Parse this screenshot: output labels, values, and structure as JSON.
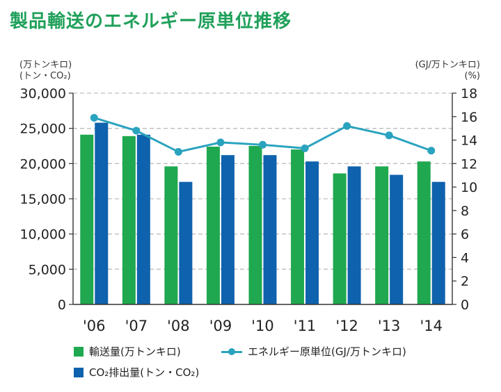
{
  "title": "製品輸送のエネルギー原単位推移",
  "chart_data": {
    "type": "bar",
    "categories": [
      "'06",
      "'07",
      "'08",
      "'09",
      "'10",
      "'11",
      "'12",
      "'13",
      "'14"
    ],
    "series": [
      {
        "name": "輸送量(万トンキロ)",
        "axis": "left",
        "color": "#1fa84f",
        "values": [
          24100,
          23900,
          19600,
          22400,
          22500,
          22000,
          18600,
          19600,
          20300
        ]
      },
      {
        "name": "CO₂排出量(トン・CO₂)",
        "axis": "left",
        "color": "#0f62ad",
        "values": [
          25800,
          24100,
          17400,
          21200,
          21200,
          20300,
          19600,
          18400,
          17400
        ]
      },
      {
        "name": "エネルギー原単位(GJ/万トンキロ)",
        "axis": "right",
        "type": "line",
        "color": "#2aa3bf",
        "values": [
          15.9,
          14.8,
          13.0,
          13.8,
          13.6,
          13.3,
          15.2,
          14.4,
          13.1
        ]
      }
    ],
    "y_left": {
      "unit_line1": "(万トンキロ)",
      "unit_line2": "(トン・CO₂)",
      "ylim": [
        0,
        30000
      ],
      "ticks": [
        "0",
        "5,000",
        "10,000",
        "15,000",
        "20,000",
        "25,000",
        "30,000"
      ]
    },
    "y_right": {
      "unit_line1": "(GJ/万トンキロ)",
      "unit_line2": "(%)",
      "ylim": [
        0,
        18
      ],
      "ticks": [
        "0",
        "2",
        "4",
        "6",
        "8",
        "10",
        "12",
        "14",
        "16",
        "18"
      ]
    },
    "grid": "horizontal-dashed",
    "legend": "bottom-left"
  }
}
